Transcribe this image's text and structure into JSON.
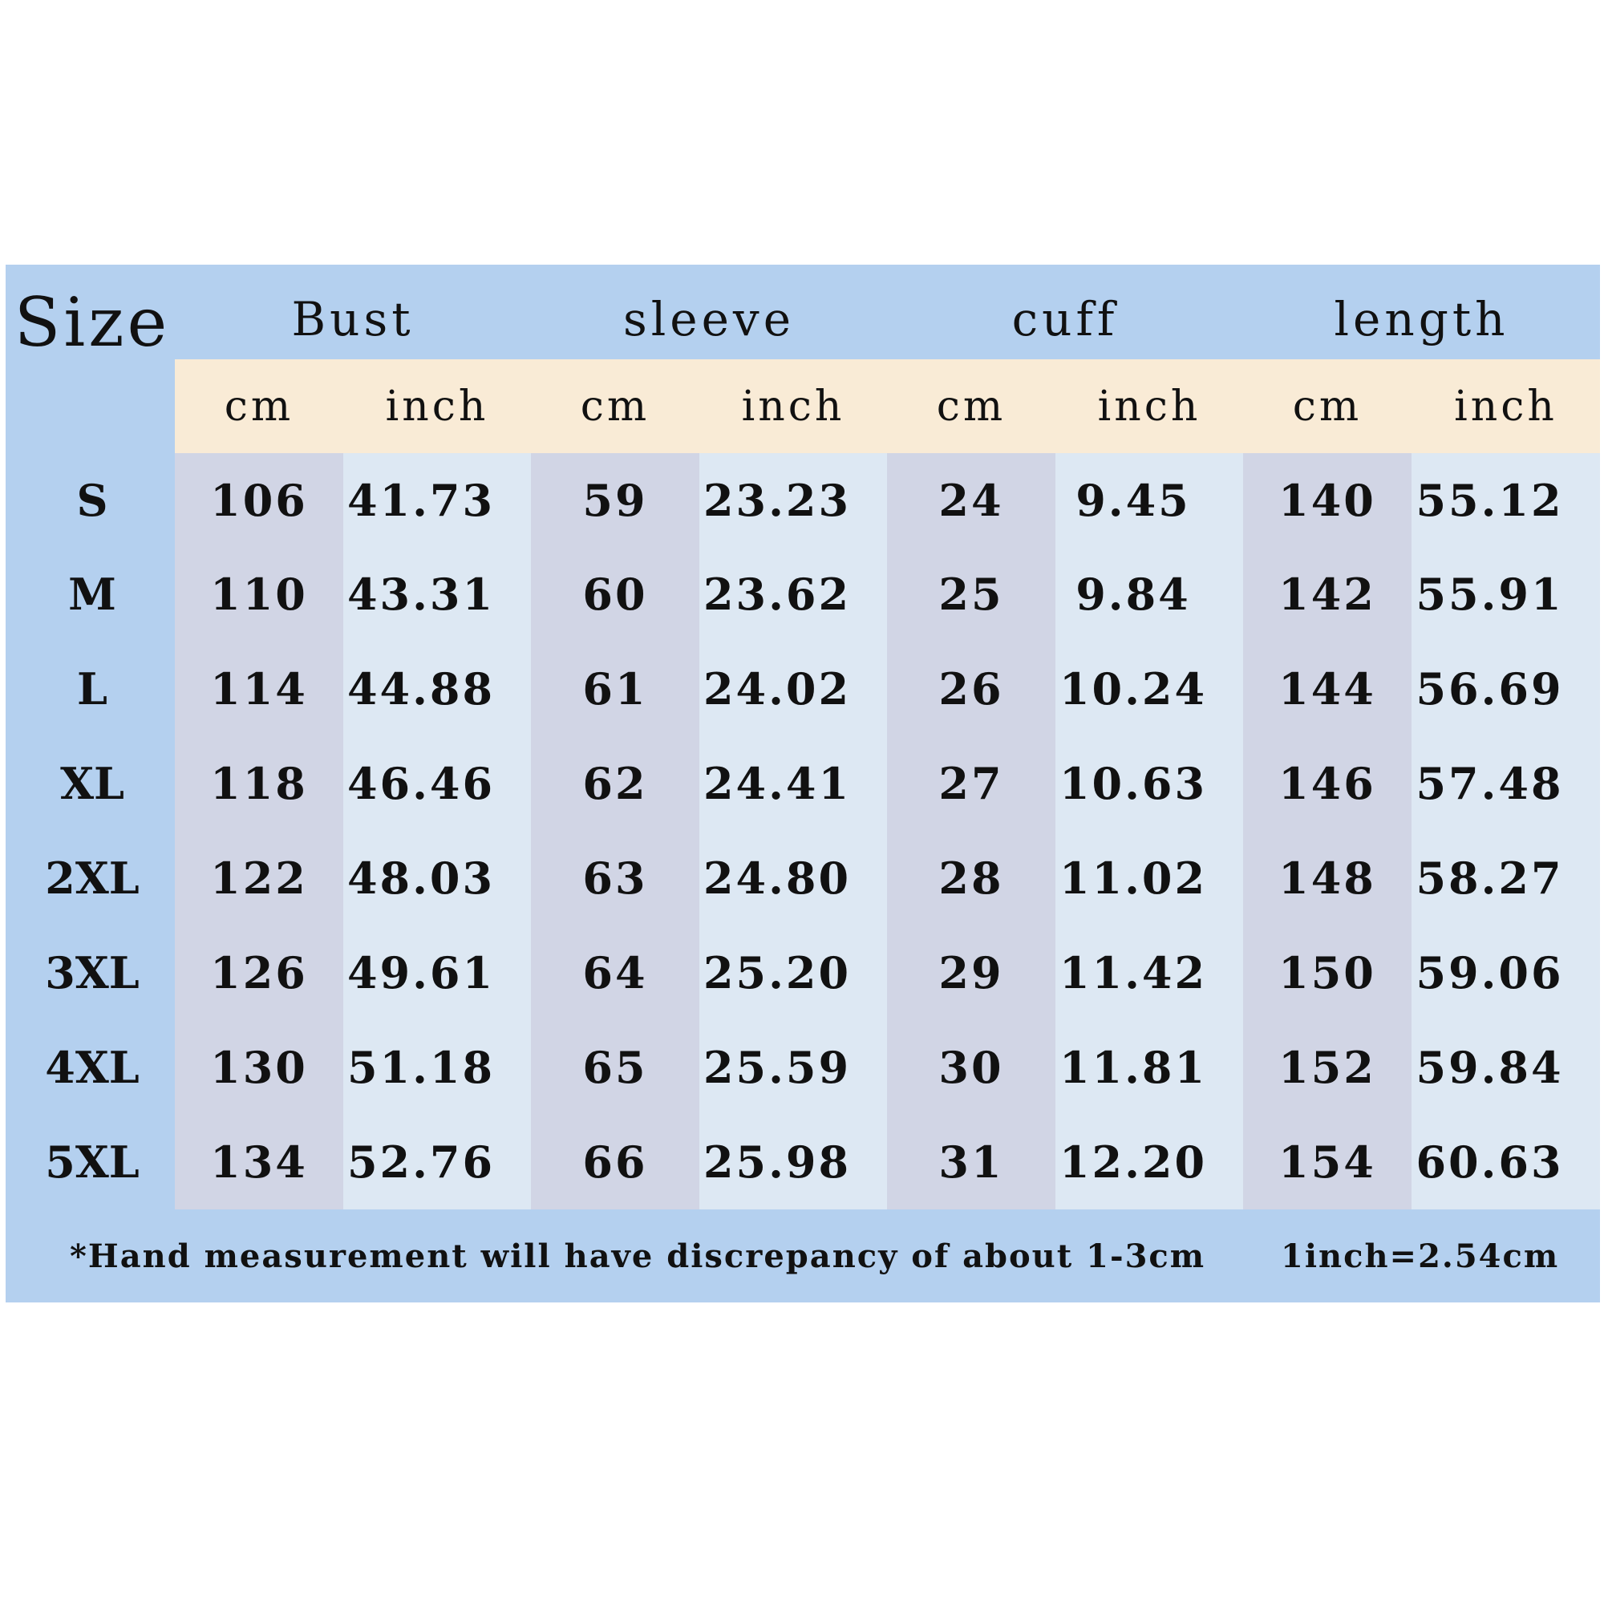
{
  "size_header": "Size",
  "groups": [
    "Bust",
    "sleeve",
    "cuff",
    "length"
  ],
  "unit_labels": [
    "cm",
    "inch",
    "cm",
    "inch",
    "cm",
    "inch",
    "cm",
    "inch"
  ],
  "rows": [
    {
      "size": "S",
      "values": [
        "106",
        "41.73",
        "59",
        "23.23",
        "24",
        "9.45",
        "140",
        "55.12"
      ]
    },
    {
      "size": "M",
      "values": [
        "110",
        "43.31",
        "60",
        "23.62",
        "25",
        "9.84",
        "142",
        "55.91"
      ]
    },
    {
      "size": "L",
      "values": [
        "114",
        "44.88",
        "61",
        "24.02",
        "26",
        "10.24",
        "144",
        "56.69"
      ]
    },
    {
      "size": "XL",
      "values": [
        "118",
        "46.46",
        "62",
        "24.41",
        "27",
        "10.63",
        "146",
        "57.48"
      ]
    },
    {
      "size": "2XL",
      "values": [
        "122",
        "48.03",
        "63",
        "24.80",
        "28",
        "11.02",
        "148",
        "58.27"
      ]
    },
    {
      "size": "3XL",
      "values": [
        "126",
        "49.61",
        "64",
        "25.20",
        "29",
        "11.42",
        "150",
        "59.06"
      ]
    },
    {
      "size": "4XL",
      "values": [
        "130",
        "51.18",
        "65",
        "25.59",
        "30",
        "11.81",
        "152",
        "59.84"
      ]
    },
    {
      "size": "5XL",
      "values": [
        "134",
        "52.76",
        "66",
        "25.98",
        "31",
        "12.20",
        "154",
        "60.63"
      ]
    }
  ],
  "notes": {
    "disclaimer": "*Hand measurement will have discrepancy of about 1-3cm",
    "conversion": "1inch=2.54cm"
  },
  "colors": {
    "frame": "#b4d0ef",
    "unit_row": "#f9ebd6",
    "cm_column": "#d1d5e5",
    "inch_column": "#dde8f3"
  }
}
